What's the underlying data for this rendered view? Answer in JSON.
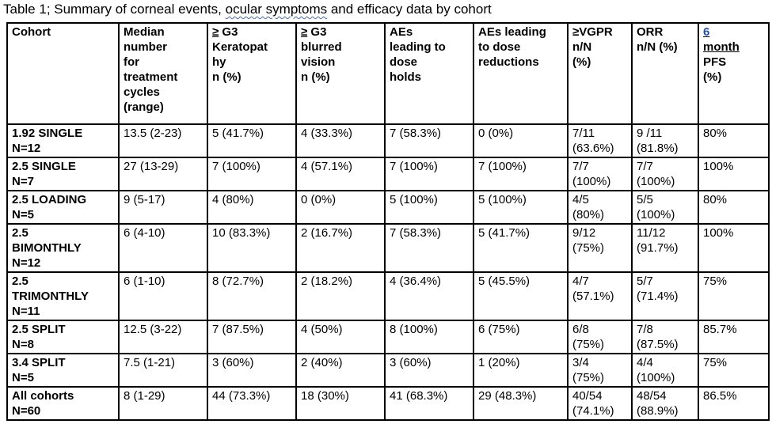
{
  "caption": {
    "before": "Table 1; Summary of corneal events, ",
    "squiggle": "ocular symptoms",
    "after": " and efficacy data by cohort"
  },
  "headers": {
    "cohort": [
      "Cohort"
    ],
    "median_cycles": [
      "Median",
      "number",
      "for",
      "treatment",
      "cycles",
      "(range)"
    ],
    "keratopathy": {
      "sym": "≥",
      "lines": [
        " G3",
        "Keratopat",
        "hy",
        "n (%)"
      ]
    },
    "blurred_vision": {
      "sym": "≥",
      "lines": [
        " G3",
        "blurred",
        "vision",
        "n (%)"
      ]
    },
    "dose_holds": [
      "AEs",
      "leading to",
      "dose",
      "holds"
    ],
    "dose_reductions": [
      "AEs leading",
      "to dose",
      "reductions"
    ],
    "vgpr": [
      "≥VGPR",
      "n/N",
      "(%)"
    ],
    "orr": [
      "ORR",
      "n/N (%)"
    ],
    "pfs": {
      "link_lines": [
        "6",
        "month"
      ],
      "rest_lines": [
        "PFS",
        "(%)"
      ]
    }
  },
  "rows": [
    {
      "cohort": [
        "1.92 SINGLE",
        "N=12"
      ],
      "median": "13.5 (2-23)",
      "keratopathy": "5 (41.7%)",
      "blurred": "4 (33.3%)",
      "holds": "7 (58.3%)",
      "reductions": "0 (0%)",
      "vgpr": [
        "7/11",
        "(63.6%)"
      ],
      "orr": [
        "9 /11",
        "(81.8%)"
      ],
      "pfs": "80%"
    },
    {
      "cohort": [
        "2.5 SINGLE",
        "N=7"
      ],
      "median": "27 (13-29)",
      "keratopathy": "7 (100%)",
      "blurred": "4 (57.1%)",
      "holds": "7 (100%)",
      "reductions": "7 (100%)",
      "vgpr": [
        "7/7",
        "(100%)"
      ],
      "orr": [
        "7/7",
        "(100%)"
      ],
      "pfs": "100%"
    },
    {
      "cohort": [
        "2.5 LOADING",
        "N=5"
      ],
      "median": "9 (5-17)",
      "keratopathy": "4 (80%)",
      "blurred": "0 (0%)",
      "holds": "5 (100%)",
      "reductions": "5 (100%)",
      "vgpr": [
        "4/5",
        "(80%)"
      ],
      "orr": [
        "5/5",
        "(100%)"
      ],
      "pfs": "80%"
    },
    {
      "cohort": [
        "2.5",
        "BIMONTHLY",
        "N=12"
      ],
      "median": "6 (4-10)",
      "keratopathy": "10 (83.3%)",
      "blurred": "2 (16.7%)",
      "holds": "7 (58.3%)",
      "reductions": "5 (41.7%)",
      "vgpr": [
        "9/12",
        "(75%)"
      ],
      "orr": [
        "11/12",
        "(91.7%)"
      ],
      "pfs": "100%"
    },
    {
      "cohort": [
        "2.5",
        "TRIMONTHLY",
        "N=11"
      ],
      "median": "6 (1-10)",
      "keratopathy": "8 (72.7%)",
      "blurred": "2 (18.2%)",
      "holds": "4 (36.4%)",
      "reductions": "5 (45.5%)",
      "vgpr": [
        "4/7",
        "(57.1%)"
      ],
      "orr": [
        "5/7",
        "(71.4%)"
      ],
      "pfs": "75%"
    },
    {
      "cohort": [
        "2.5 SPLIT",
        "N=8"
      ],
      "median": "12.5 (3-22)",
      "keratopathy": "7 (87.5%)",
      "blurred": "4 (50%)",
      "holds": "8 (100%)",
      "reductions": "6 (75%)",
      "vgpr": [
        "6/8",
        "(75%)"
      ],
      "orr": [
        "7/8",
        "(87.5%)"
      ],
      "pfs": "85.7%"
    },
    {
      "cohort": [
        "3.4 SPLIT",
        "N=5"
      ],
      "median": "7.5 (1-21)",
      "keratopathy": "3 (60%)",
      "blurred": "2 (40%)",
      "holds": "3 (60%)",
      "reductions": "1 (20%)",
      "vgpr": [
        "3/4",
        "(75%)"
      ],
      "orr": [
        "4/4",
        "(100%)"
      ],
      "pfs": "75%"
    },
    {
      "cohort": [
        "All cohorts",
        "N=60"
      ],
      "median": "8 (1-29)",
      "keratopathy": "44 (73.3%)",
      "blurred": "18 (30%)",
      "holds": "41 (68.3%)",
      "reductions": "29 (48.3%)",
      "vgpr": [
        "40/54",
        "(74.1%)"
      ],
      "orr": [
        "48/54",
        "(88.9%)"
      ],
      "pfs": "86.5%"
    }
  ]
}
